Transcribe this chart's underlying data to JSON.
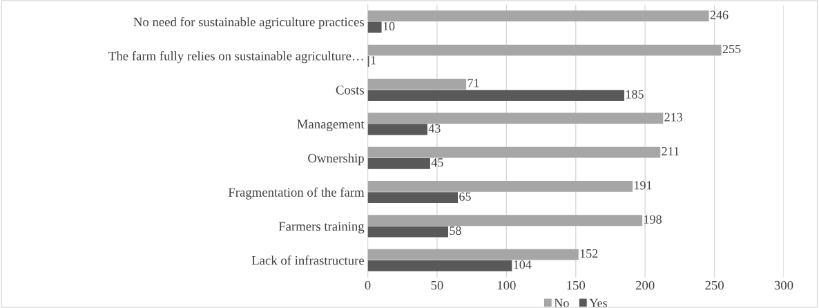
{
  "chart_data": {
    "type": "bar",
    "orientation": "horizontal",
    "categories": [
      "No need for sustainable agriculture practices",
      "The farm fully relies on sustainable agriculture…",
      "Costs",
      "Management",
      "Ownership",
      "Fragmentation of the farm",
      "Farmers training",
      "Lack of infrastructure"
    ],
    "series": [
      {
        "name": "No",
        "color": "#a6a6a6",
        "values": [
          246,
          255,
          71,
          213,
          211,
          191,
          198,
          152
        ]
      },
      {
        "name": "Yes",
        "color": "#595959",
        "values": [
          10,
          1,
          185,
          43,
          45,
          65,
          58,
          104
        ]
      }
    ],
    "xlim": [
      0,
      300
    ],
    "xticks": [
      0,
      50,
      100,
      150,
      200,
      250,
      300
    ],
    "grid": "x",
    "legend": "bottom",
    "data_labels": true
  }
}
